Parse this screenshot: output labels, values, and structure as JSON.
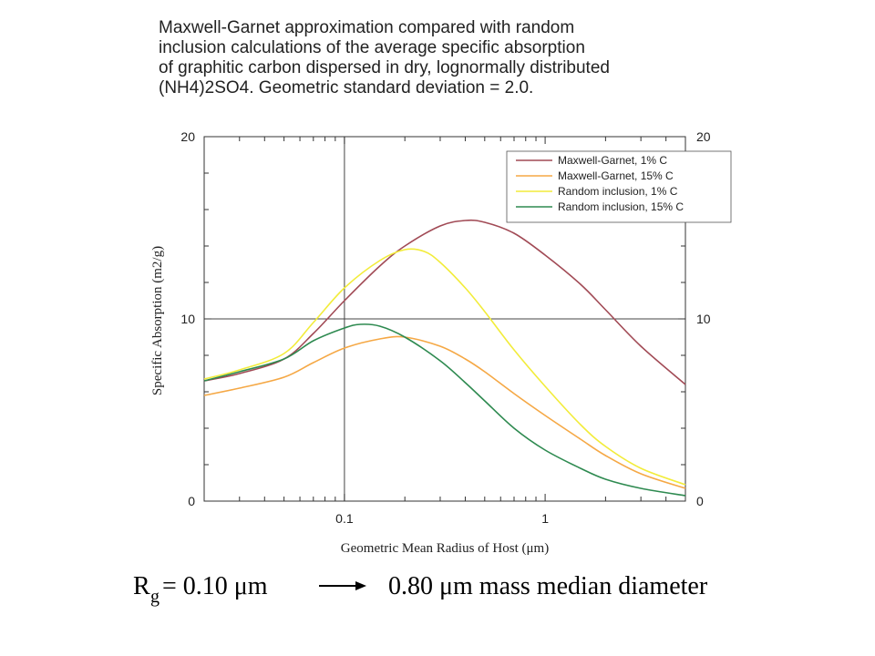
{
  "chart_data": {
    "type": "line",
    "title_lines": [
      "Maxwell-Garnet approximation compared with random",
      "inclusion calculations of the average specific absorption",
      "of graphitic carbon dispersed in dry, lognormally distributed",
      "(NH4)2SO4. Geometric standard deviation = 2.0."
    ],
    "xlabel": "Geometric Mean Radius of Host (μm)",
    "ylabel": "Specific Absorption (m2/g)",
    "x_scale": "log",
    "xlim": [
      0.02,
      5
    ],
    "ylim": [
      0,
      20
    ],
    "x_ticks": [
      {
        "value": 0.1,
        "label": "0.1"
      },
      {
        "value": 1,
        "label": "1"
      }
    ],
    "y_ticks": [
      {
        "value": 0,
        "label": "0"
      },
      {
        "value": 10,
        "label": "10"
      },
      {
        "value": 20,
        "label": "20"
      }
    ],
    "reference_lines": {
      "x": 0.1,
      "y": 10
    },
    "legend_position": "top-right",
    "series": [
      {
        "name": "Maxwell-Garnet,  1% C",
        "color": "#a14a55",
        "points": [
          [
            0.02,
            6.6
          ],
          [
            0.03,
            7.0
          ],
          [
            0.05,
            7.8
          ],
          [
            0.07,
            9.2
          ],
          [
            0.1,
            11.0
          ],
          [
            0.15,
            12.9
          ],
          [
            0.2,
            14.0
          ],
          [
            0.3,
            15.1
          ],
          [
            0.4,
            15.4
          ],
          [
            0.5,
            15.3
          ],
          [
            0.7,
            14.7
          ],
          [
            1.0,
            13.5
          ],
          [
            1.5,
            11.9
          ],
          [
            2.0,
            10.5
          ],
          [
            3.0,
            8.5
          ],
          [
            5.0,
            6.4
          ]
        ]
      },
      {
        "name": "Maxwell-Garnet, 15% C",
        "color": "#f5a845",
        "points": [
          [
            0.02,
            5.8
          ],
          [
            0.03,
            6.2
          ],
          [
            0.05,
            6.8
          ],
          [
            0.07,
            7.6
          ],
          [
            0.1,
            8.4
          ],
          [
            0.15,
            8.9
          ],
          [
            0.2,
            9.0
          ],
          [
            0.3,
            8.5
          ],
          [
            0.4,
            7.8
          ],
          [
            0.5,
            7.1
          ],
          [
            0.7,
            5.9
          ],
          [
            1.0,
            4.7
          ],
          [
            1.5,
            3.4
          ],
          [
            2.0,
            2.5
          ],
          [
            3.0,
            1.5
          ],
          [
            5.0,
            0.7
          ]
        ]
      },
      {
        "name": "Random inclusion,  1% C",
        "color": "#f2ec3a",
        "points": [
          [
            0.02,
            6.7
          ],
          [
            0.03,
            7.2
          ],
          [
            0.05,
            8.1
          ],
          [
            0.07,
            9.8
          ],
          [
            0.1,
            11.7
          ],
          [
            0.15,
            13.2
          ],
          [
            0.2,
            13.8
          ],
          [
            0.25,
            13.7
          ],
          [
            0.3,
            13.1
          ],
          [
            0.4,
            11.7
          ],
          [
            0.5,
            10.4
          ],
          [
            0.7,
            8.3
          ],
          [
            1.0,
            6.3
          ],
          [
            1.5,
            4.2
          ],
          [
            2.0,
            3.0
          ],
          [
            3.0,
            1.8
          ],
          [
            5.0,
            0.9
          ]
        ]
      },
      {
        "name": "Random inclusion, 15% C",
        "color": "#2e8a50",
        "points": [
          [
            0.02,
            6.6
          ],
          [
            0.03,
            7.1
          ],
          [
            0.05,
            7.8
          ],
          [
            0.07,
            8.8
          ],
          [
            0.1,
            9.5
          ],
          [
            0.12,
            9.7
          ],
          [
            0.15,
            9.6
          ],
          [
            0.2,
            9.0
          ],
          [
            0.3,
            7.7
          ],
          [
            0.4,
            6.5
          ],
          [
            0.5,
            5.5
          ],
          [
            0.7,
            4.0
          ],
          [
            1.0,
            2.8
          ],
          [
            1.5,
            1.8
          ],
          [
            2.0,
            1.2
          ],
          [
            3.0,
            0.7
          ],
          [
            5.0,
            0.3
          ]
        ]
      }
    ]
  },
  "caption": {
    "left_prefix": "R",
    "left_subscript": "g",
    "left_rest": " = 0.10 μm",
    "right": "0.80 μm mass median diameter"
  }
}
